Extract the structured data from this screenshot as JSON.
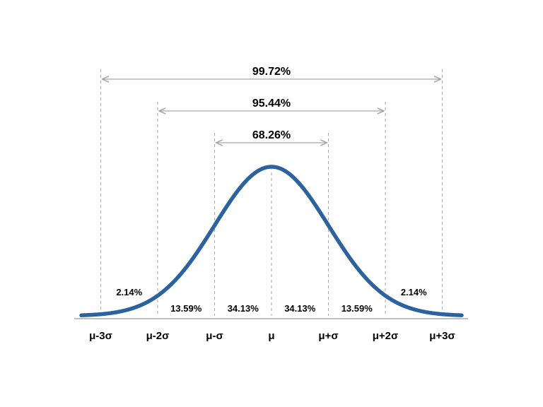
{
  "colors": {
    "curve": "#2b62a0",
    "guides": "#a6a6a6",
    "axis": "#bfbfbf",
    "text": "#000000"
  },
  "curve": {
    "type": "normal-distribution",
    "mean": 0,
    "sd": 1
  },
  "axis": {
    "ticks": [
      {
        "sigma": -3,
        "label": "μ-3σ"
      },
      {
        "sigma": -2,
        "label": "μ-2σ"
      },
      {
        "sigma": -1,
        "label": "μ-σ"
      },
      {
        "sigma": 0,
        "label": "μ"
      },
      {
        "sigma": 1,
        "label": "μ+σ"
      },
      {
        "sigma": 2,
        "label": "μ+2σ"
      },
      {
        "sigma": 3,
        "label": "μ+3σ"
      }
    ]
  },
  "regions": [
    {
      "from": -3,
      "to": -2,
      "label": "2.14%",
      "raised": true
    },
    {
      "from": -2,
      "to": -1,
      "label": "13.59%",
      "raised": false
    },
    {
      "from": -1,
      "to": 0,
      "label": "34.13%",
      "raised": false
    },
    {
      "from": 0,
      "to": 1,
      "label": "34.13%",
      "raised": false
    },
    {
      "from": 1,
      "to": 2,
      "label": "13.59%",
      "raised": false
    },
    {
      "from": 2,
      "to": 3,
      "label": "2.14%",
      "raised": true
    }
  ],
  "spans": [
    {
      "sigma": 3,
      "label": "99.72%"
    },
    {
      "sigma": 2,
      "label": "95.44%"
    },
    {
      "sigma": 1,
      "label": "68.26%"
    }
  ]
}
